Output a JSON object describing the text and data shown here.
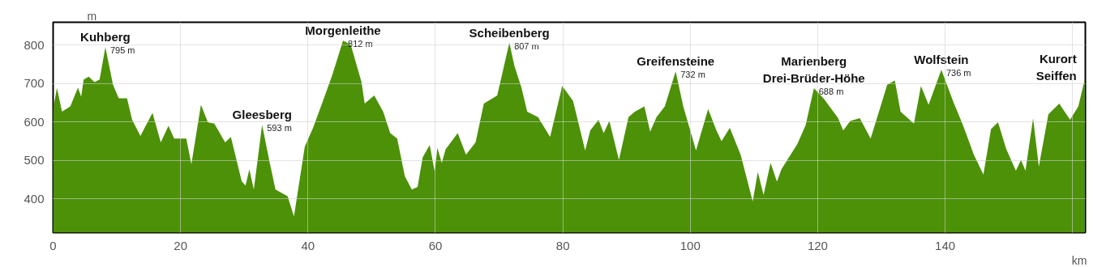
{
  "chart_data": {
    "type": "area",
    "xlabel": "km",
    "ylabel": "m",
    "xlim": [
      0,
      162
    ],
    "ylim": [
      312,
      860
    ],
    "xticks": [
      0,
      20,
      40,
      60,
      80,
      100,
      120,
      140,
      {
        "value": 160,
        "label": null
      }
    ],
    "yticks": [
      400,
      500,
      600,
      700,
      800
    ],
    "grid": true,
    "series": [
      {
        "color": "#4c9108",
        "x": [
          0,
          0.6,
          1.4,
          2.7,
          3.9,
          4.4,
          4.8,
          5.6,
          6.5,
          7.3,
          8.2,
          9.4,
          10.3,
          11.6,
          12.4,
          13.7,
          15.6,
          16.9,
          18.1,
          19.0,
          20.9,
          21.7,
          23.2,
          24.3,
          25.3,
          27.0,
          27.9,
          29.6,
          30.2,
          30.8,
          31.5,
          32.8,
          34.0,
          34.9,
          36.8,
          37.8,
          39.5,
          40.8,
          42.5,
          43.8,
          45.5,
          46.7,
          48.4,
          48.9,
          50.4,
          51.8,
          52.9,
          54.0,
          55.2,
          56.3,
          57.2,
          58.0,
          59.1,
          59.9,
          60.3,
          61.0,
          61.6,
          63.5,
          64.8,
          66.3,
          67.6,
          69.7,
          71.6,
          72.4,
          73.5,
          74.4,
          76.1,
          78.0,
          79.9,
          81.6,
          83.5,
          84.3,
          85.6,
          86.4,
          87.3,
          88.8,
          90.3,
          91.3,
          92.8,
          93.7,
          94.7,
          96.0,
          97.7,
          98.9,
          100.9,
          102.8,
          104.1,
          104.9,
          106.2,
          107.9,
          109.8,
          110.6,
          111.5,
          112.6,
          113.6,
          114.3,
          116.8,
          118.1,
          119.4,
          120.9,
          123.2,
          124.0,
          125.1,
          126.6,
          128.3,
          130.0,
          130.9,
          132.1,
          133.0,
          135.1,
          136.2,
          137.4,
          139.4,
          141.3,
          142.8,
          144.5,
          146.0,
          147.2,
          148.3,
          149.6,
          151.1,
          151.9,
          152.6,
          153.8,
          154.7,
          156.2,
          157.9,
          159.6,
          160.9,
          161.9
        ],
        "values": [
          634,
          689,
          627,
          641,
          690,
          666,
          711,
          718,
          704,
          711,
          795,
          697,
          662,
          662,
          606,
          564,
          624,
          547,
          590,
          557,
          557,
          490,
          645,
          599,
          596,
          547,
          561,
          446,
          435,
          477,
          424,
          593,
          494,
          424,
          407,
          354,
          536,
          585,
          662,
          722,
          812,
          802,
          704,
          648,
          669,
          627,
          571,
          557,
          459,
          424,
          431,
          508,
          540,
          470,
          533,
          494,
          529,
          571,
          515,
          547,
          648,
          669,
          807,
          746,
          690,
          627,
          613,
          561,
          694,
          655,
          526,
          578,
          606,
          571,
          603,
          501,
          613,
          627,
          641,
          575,
          613,
          641,
          732,
          641,
          526,
          634,
          578,
          550,
          585,
          515,
          393,
          470,
          410,
          494,
          445,
          477,
          543,
          592,
          688,
          662,
          610,
          578,
          603,
          610,
          557,
          648,
          697,
          708,
          627,
          596,
          694,
          645,
          736,
          652,
          592,
          515,
          463,
          582,
          599,
          529,
          473,
          501,
          473,
          610,
          484,
          620,
          648,
          606,
          641,
          711
        ],
        "value_labels": [
          null,
          null,
          null,
          null,
          null,
          null,
          null,
          null,
          null,
          null,
          "795 m",
          null,
          null,
          null,
          null,
          null,
          null,
          null,
          null,
          null,
          null,
          null,
          null,
          null,
          null,
          null,
          null,
          null,
          null,
          null,
          null,
          "593 m",
          null,
          null,
          null,
          null,
          null,
          null,
          null,
          null,
          "812 m",
          null,
          null,
          null,
          null,
          null,
          null,
          null,
          null,
          null,
          null,
          null,
          null,
          null,
          null,
          null,
          null,
          null,
          null,
          null,
          null,
          null,
          "807 m",
          null,
          null,
          null,
          null,
          null,
          null,
          null,
          null,
          null,
          null,
          null,
          null,
          null,
          null,
          null,
          null,
          null,
          null,
          null,
          "732 m",
          null,
          null,
          null,
          null,
          null,
          null,
          null,
          null,
          null,
          null,
          null,
          null,
          null,
          null,
          null,
          "688 m",
          null,
          null,
          null,
          null,
          null,
          null,
          null,
          null,
          null,
          null,
          null,
          null,
          null,
          "736 m",
          null,
          null,
          null,
          null,
          null,
          null,
          null,
          null,
          null,
          null,
          null,
          null,
          null,
          null,
          null,
          null,
          null
        ]
      }
    ],
    "annotations": [
      {
        "text": "Kuhberg",
        "x": 8.2,
        "y": 795
      },
      {
        "text": "Gleesberg",
        "x": 32.8,
        "y": 593
      },
      {
        "text": "Morgenleithe",
        "x": 45.5,
        "y": 812
      },
      {
        "text": "Scheibenberg",
        "x": 71.6,
        "y": 807
      },
      {
        "text": "Greifensteine",
        "x": 97.7,
        "y": 732
      },
      {
        "text": "Marienberg\nDrei-Brüder-Höhe",
        "x": 119.4,
        "y": 688
      },
      {
        "text": "Wolfstein",
        "x": 139.4,
        "y": 736
      },
      {
        "text": "Kurort\nSeiffen",
        "x": 161.9,
        "y": 711
      }
    ]
  }
}
